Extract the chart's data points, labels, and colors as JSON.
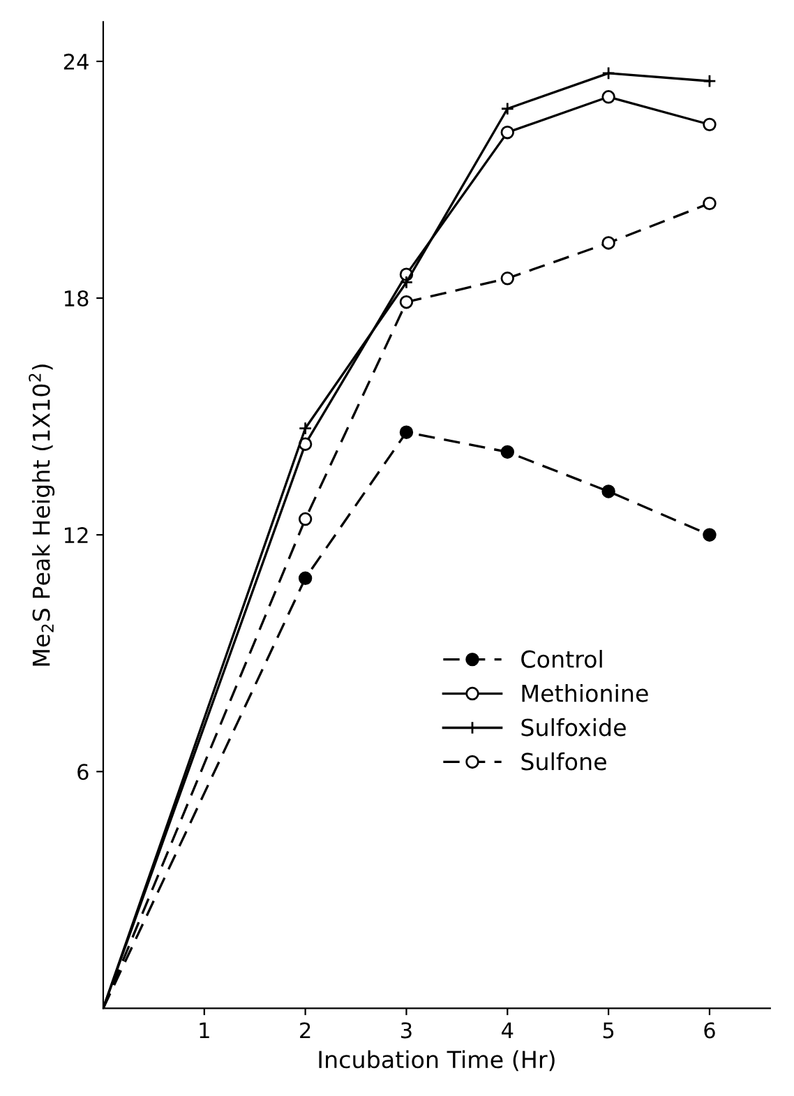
{
  "chart_data": {
    "type": "line",
    "xlabel": "Incubation Time (Hr)",
    "ylabel": "Me$_{2}$S Peak Height (1X10$^{2}$)",
    "x": [
      0,
      2,
      3,
      4,
      5,
      6
    ],
    "series": [
      {
        "name": "Control",
        "color": "#000000",
        "marker": "circle_filled",
        "line_style": "dashed",
        "values": [
          0,
          10.9,
          14.6,
          14.1,
          13.1,
          12.0
        ]
      },
      {
        "name": "Methionine",
        "color": "#000000",
        "marker": "circle",
        "line_style": "solid",
        "values": [
          0,
          14.3,
          18.6,
          22.2,
          23.1,
          22.4
        ]
      },
      {
        "name": "Sulfoxide",
        "color": "#000000",
        "marker": "cross",
        "line_style": "solid",
        "values": [
          0,
          14.7,
          18.4,
          22.8,
          23.7,
          23.5
        ]
      },
      {
        "name": "Sulfone",
        "color": "#000000",
        "marker": "circle",
        "line_style": "dashed",
        "values": [
          0,
          12.4,
          17.9,
          18.5,
          19.4,
          20.4
        ]
      }
    ],
    "xlim": [
      0,
      6.6
    ],
    "ylim": [
      0,
      25
    ],
    "xticks": [
      1,
      2,
      3,
      4,
      5,
      6
    ],
    "yticks": [
      6,
      12,
      18,
      24
    ],
    "grid": false,
    "legend": "right"
  }
}
